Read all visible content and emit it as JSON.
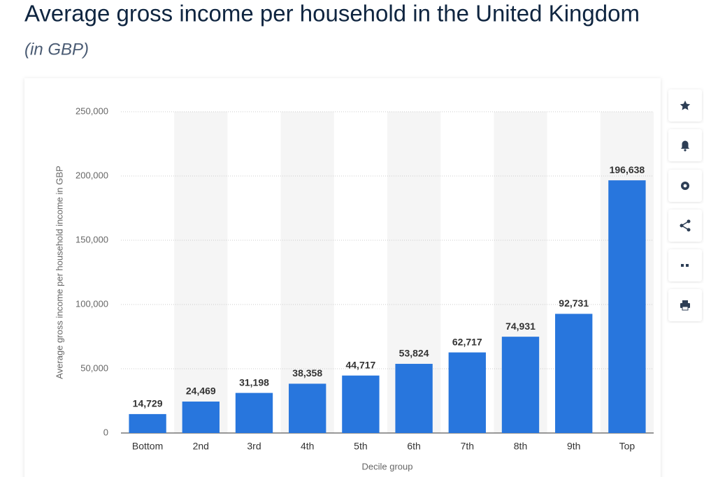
{
  "chart_data": {
    "type": "bar",
    "title": "Average gross income per household in the United Kingdom",
    "subtitle": "(in GBP)",
    "y_label": "Average gross income per household income in GBP",
    "x_label": "Decile group",
    "categories": [
      "Bottom",
      "2nd",
      "3rd",
      "4th",
      "5th",
      "6th",
      "7th",
      "8th",
      "9th",
      "Top"
    ],
    "values": [
      14729,
      24469,
      31198,
      38358,
      44717,
      53824,
      62717,
      74931,
      92731,
      196638
    ],
    "value_labels": [
      "14,729",
      "24,469",
      "31,198",
      "38,358",
      "44,717",
      "53,824",
      "62,717",
      "74,931",
      "92,731",
      "196,638"
    ],
    "color": "#2876dd",
    "ylim": [
      0,
      250000
    ],
    "yticks": [
      0,
      {
        "value": 50000,
        "label": "50,000"
      },
      {
        "value": 100000,
        "label": "100,000"
      },
      {
        "value": 150000,
        "label": "150,000"
      },
      {
        "value": 200000,
        "label": "200,000"
      },
      {
        "value": 250000,
        "label": "250,000"
      }
    ],
    "grid": true
  }
}
